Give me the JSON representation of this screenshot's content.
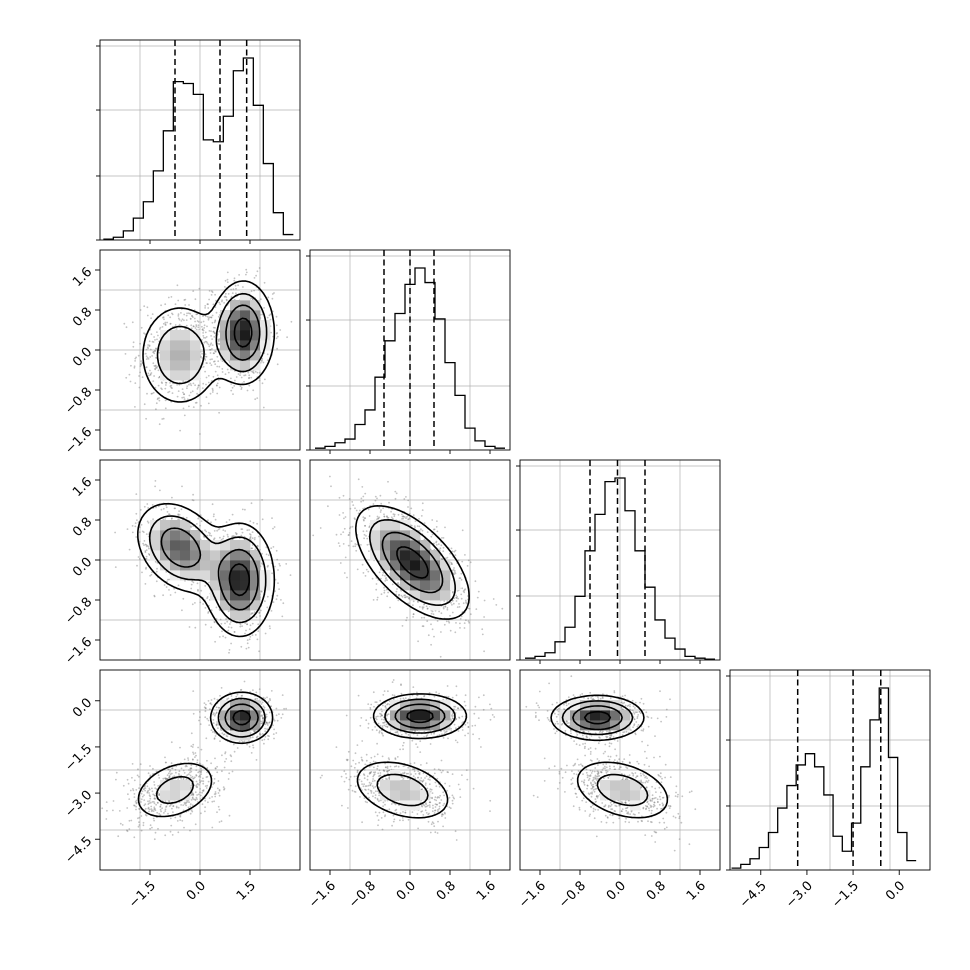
{
  "chart_data": {
    "type": "corner",
    "parameters": 4,
    "grid": true,
    "quantile_lines": "dashed",
    "marginals": [
      {
        "param": 0,
        "range": [
          -3.0,
          3.0
        ],
        "quantiles": [
          -0.75,
          0.6,
          1.4
        ],
        "bins": [
          -2.75,
          -2.45,
          -2.15,
          -1.85,
          -1.55,
          -1.25,
          -0.95,
          -0.65,
          -0.35,
          -0.05,
          0.25,
          0.55,
          0.85,
          1.15,
          1.45,
          1.75,
          2.05,
          2.35,
          2.65
        ],
        "counts": [
          0.005,
          0.015,
          0.05,
          0.12,
          0.21,
          0.38,
          0.6,
          0.87,
          0.86,
          0.8,
          0.55,
          0.54,
          0.68,
          0.93,
          1.0,
          0.74,
          0.42,
          0.15,
          0.03
        ],
        "ticks": [],
        "tick_labels": []
      },
      {
        "param": 1,
        "range": [
          -2.0,
          2.0
        ],
        "quantiles": [
          -0.52,
          0.0,
          0.48
        ],
        "bins": [
          -1.8,
          -1.6,
          -1.4,
          -1.2,
          -1.0,
          -0.8,
          -0.6,
          -0.4,
          -0.2,
          0.0,
          0.2,
          0.4,
          0.6,
          0.8,
          1.0,
          1.2,
          1.4,
          1.6,
          1.8
        ],
        "counts": [
          0.01,
          0.02,
          0.04,
          0.06,
          0.14,
          0.22,
          0.4,
          0.6,
          0.75,
          0.91,
          1.0,
          0.92,
          0.72,
          0.48,
          0.3,
          0.12,
          0.05,
          0.02,
          0.01
        ],
        "ticks": [],
        "tick_labels": []
      },
      {
        "param": 2,
        "range": [
          -2.0,
          2.0
        ],
        "quantiles": [
          -0.6,
          -0.05,
          0.5
        ],
        "bins": [
          -1.8,
          -1.6,
          -1.4,
          -1.2,
          -1.0,
          -0.8,
          -0.6,
          -0.4,
          -0.2,
          0.0,
          0.2,
          0.4,
          0.6,
          0.8,
          1.0,
          1.2,
          1.4,
          1.6,
          1.8
        ],
        "counts": [
          0.01,
          0.02,
          0.04,
          0.1,
          0.18,
          0.35,
          0.6,
          0.8,
          0.98,
          1.0,
          0.82,
          0.6,
          0.4,
          0.22,
          0.12,
          0.06,
          0.02,
          0.01,
          0.005
        ],
        "ticks": [
          -1.6,
          -0.8,
          0.0,
          0.8,
          1.6
        ],
        "tick_labels": [
          "−1.6",
          "−0.8",
          "0.0",
          "0.8",
          "1.6"
        ]
      },
      {
        "param": 3,
        "range": [
          -5.5,
          1.0
        ],
        "quantiles": [
          -3.3,
          -1.5,
          -0.6
        ],
        "bins": [
          -5.3,
          -5.0,
          -4.7,
          -4.4,
          -4.1,
          -3.8,
          -3.5,
          -3.2,
          -2.9,
          -2.6,
          -2.3,
          -2.0,
          -1.7,
          -1.4,
          -1.1,
          -0.8,
          -0.5,
          -0.2,
          0.1,
          0.4
        ],
        "counts": [
          0.01,
          0.03,
          0.06,
          0.12,
          0.2,
          0.33,
          0.45,
          0.56,
          0.62,
          0.55,
          0.4,
          0.18,
          0.1,
          0.25,
          0.55,
          0.8,
          0.97,
          0.6,
          0.2,
          0.05
        ],
        "ticks": [
          -4.5,
          -3.0,
          -1.5,
          0.0
        ],
        "tick_labels": [
          "−4.5",
          "−3.0",
          "−1.5",
          "0.0"
        ]
      }
    ],
    "joint": [
      {
        "row": 1,
        "col": 0,
        "modes": [
          {
            "cx": -0.6,
            "cy": -0.1,
            "sx": 0.65,
            "sy": 0.55,
            "rho": 0.0,
            "w": 0.45
          },
          {
            "cx": 1.3,
            "cy": 0.35,
            "sx": 0.45,
            "sy": 0.5,
            "rho": 0.0,
            "w": 0.55
          }
        ]
      },
      {
        "row": 2,
        "col": 0,
        "modes": [
          {
            "cx": -0.6,
            "cy": 0.25,
            "sx": 0.65,
            "sy": 0.45,
            "rho": -0.3,
            "w": 0.45
          },
          {
            "cx": 1.2,
            "cy": -0.4,
            "sx": 0.5,
            "sy": 0.55,
            "rho": 0.0,
            "w": 0.55
          }
        ]
      },
      {
        "row": 2,
        "col": 1,
        "modes": [
          {
            "cx": 0.05,
            "cy": -0.05,
            "sx": 0.55,
            "sy": 0.55,
            "rho": -0.6,
            "w": 1.0
          }
        ]
      },
      {
        "row": 3,
        "col": 0,
        "modes": [
          {
            "cx": -0.75,
            "cy": -2.9,
            "sx": 0.7,
            "sy": 0.55,
            "rho": 0.35,
            "w": 0.45
          },
          {
            "cx": 1.25,
            "cy": -0.55,
            "sx": 0.45,
            "sy": 0.4,
            "rho": 0.0,
            "w": 0.55
          }
        ]
      },
      {
        "row": 3,
        "col": 1,
        "modes": [
          {
            "cx": -0.15,
            "cy": -2.9,
            "sx": 0.55,
            "sy": 0.55,
            "rho": -0.35,
            "w": 0.45
          },
          {
            "cx": 0.2,
            "cy": -0.5,
            "sx": 0.45,
            "sy": 0.35,
            "rho": 0.0,
            "w": 0.55
          }
        ]
      },
      {
        "row": 3,
        "col": 2,
        "modes": [
          {
            "cx": 0.05,
            "cy": -2.9,
            "sx": 0.55,
            "sy": 0.55,
            "rho": -0.35,
            "w": 0.45
          },
          {
            "cx": -0.45,
            "cy": -0.55,
            "sx": 0.45,
            "sy": 0.35,
            "rho": 0.0,
            "w": 0.55
          }
        ]
      }
    ],
    "y_axis_labels": [
      {
        "row": 1,
        "ticks": [
          -1.6,
          -0.8,
          0.0,
          0.8,
          1.6
        ],
        "labels": [
          "−1.6",
          "−0.8",
          "0.0",
          "0.8",
          "1.6"
        ]
      },
      {
        "row": 2,
        "ticks": [
          -1.6,
          -0.8,
          0.0,
          0.8,
          1.6
        ],
        "labels": [
          "−1.6",
          "−0.8",
          "0.0",
          "0.8",
          "1.6"
        ]
      },
      {
        "row": 3,
        "ticks": [
          -4.5,
          -3.0,
          -1.5,
          0.0
        ],
        "labels": [
          "−4.5",
          "−3.0",
          "−1.5",
          "0.0"
        ]
      }
    ],
    "x_axis_labels": [
      {
        "col": 0,
        "ticks": [
          -1.5,
          0.0,
          1.5
        ],
        "labels": [
          "−1.5",
          "0.0",
          "1.5"
        ]
      },
      {
        "col": 1,
        "ticks": [
          -1.6,
          -0.8,
          0.0,
          0.8,
          1.6
        ],
        "labels": [
          "−1.6",
          "−0.8",
          "0.0",
          "0.8",
          "1.6"
        ]
      },
      {
        "col": 2,
        "ticks": [
          -1.6,
          -0.8,
          0.0,
          0.8,
          1.6
        ],
        "labels": [
          "−1.6",
          "−0.8",
          "0.0",
          "0.8",
          "1.6"
        ]
      },
      {
        "col": 3,
        "ticks": [
          -4.5,
          -3.0,
          -1.5,
          0.0
        ],
        "labels": [
          "−4.5",
          "−3.0",
          "−1.5",
          "0.0"
        ]
      }
    ]
  }
}
